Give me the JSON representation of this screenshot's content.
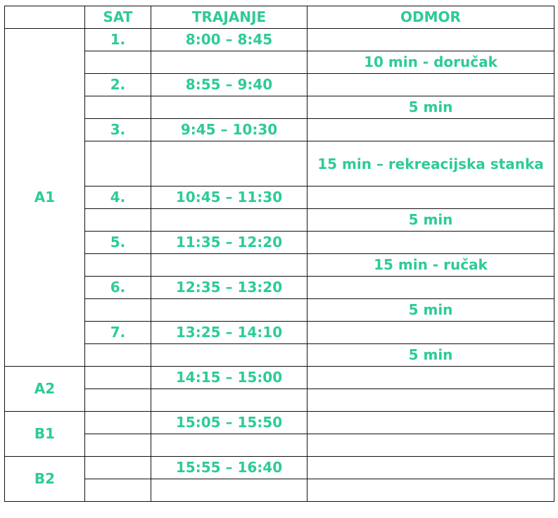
{
  "header": {
    "group": "",
    "sat": "SAT",
    "trajanje": "TRAJANJE",
    "odmor": "ODMOR"
  },
  "colors": {
    "text": "#2dcb98",
    "border": "#111111"
  },
  "groups": [
    {
      "label": "A1",
      "rows": [
        {
          "sat": "1.",
          "trajanje": "8:00 – 8:45",
          "odmor": ""
        },
        {
          "sat": "",
          "trajanje": "",
          "odmor": "10 min - doručak"
        },
        {
          "sat": "2.",
          "trajanje": "8:55 – 9:40",
          "odmor": ""
        },
        {
          "sat": "",
          "trajanje": "",
          "odmor": "5 min"
        },
        {
          "sat": "3.",
          "trajanje": "9:45 – 10:30",
          "odmor": ""
        },
        {
          "sat": "",
          "trajanje": "",
          "odmor": "15 min – rekreacijska stanka"
        },
        {
          "sat": "4.",
          "trajanje": "10:45 – 11:30",
          "odmor": ""
        },
        {
          "sat": "",
          "trajanje": "",
          "odmor": "5 min"
        },
        {
          "sat": "5.",
          "trajanje": "11:35 – 12:20",
          "odmor": ""
        },
        {
          "sat": "",
          "trajanje": "",
          "odmor": "15 min - ručak"
        },
        {
          "sat": "6.",
          "trajanje": "12:35 – 13:20",
          "odmor": ""
        },
        {
          "sat": "",
          "trajanje": "",
          "odmor": "5 min"
        },
        {
          "sat": "7.",
          "trajanje": "13:25 – 14:10",
          "odmor": ""
        },
        {
          "sat": "",
          "trajanje": "",
          "odmor": "5 min"
        }
      ]
    },
    {
      "label": "A2",
      "rows": [
        {
          "sat": "",
          "trajanje": "14:15 – 15:00",
          "odmor": ""
        },
        {
          "sat": "",
          "trajanje": "",
          "odmor": ""
        }
      ]
    },
    {
      "label": "B1",
      "rows": [
        {
          "sat": "",
          "trajanje": "15:05 – 15:50",
          "odmor": ""
        },
        {
          "sat": "",
          "trajanje": "",
          "odmor": ""
        }
      ]
    },
    {
      "label": "B2",
      "rows": [
        {
          "sat": "",
          "trajanje": "15:55 – 16:40",
          "odmor": ""
        },
        {
          "sat": "",
          "trajanje": "",
          "odmor": ""
        }
      ]
    }
  ]
}
